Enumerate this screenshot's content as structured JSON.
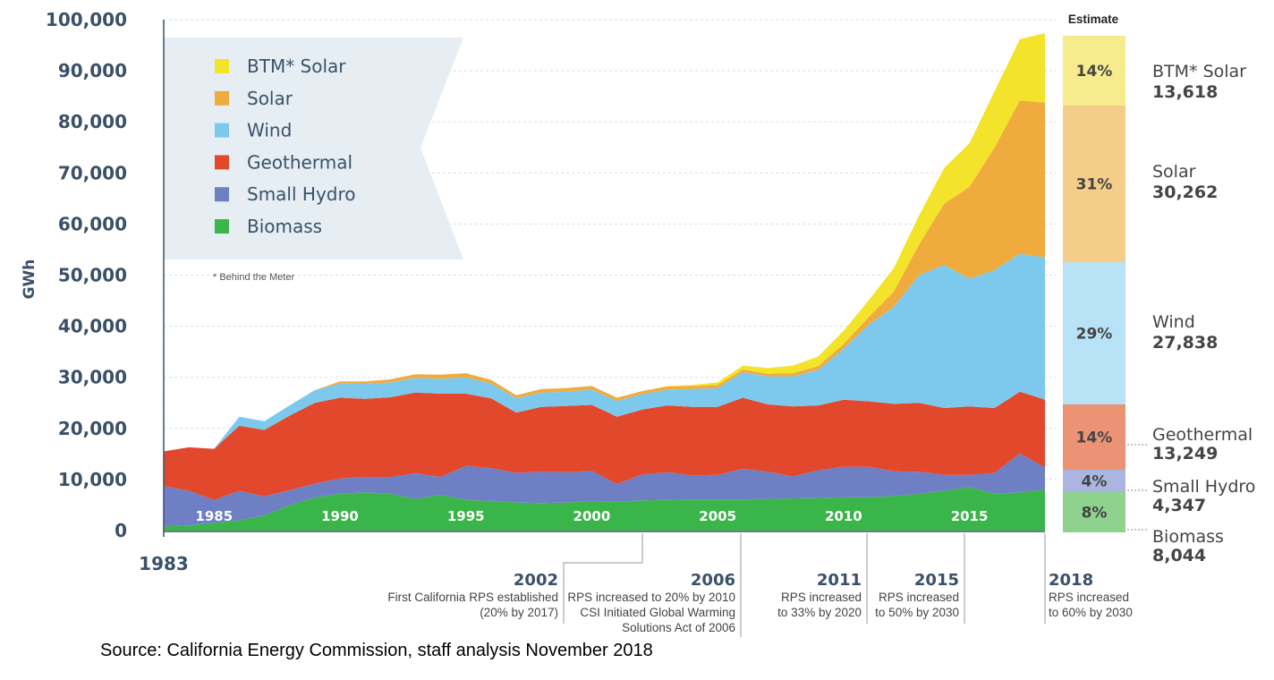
{
  "chart_data": {
    "type": "area",
    "stacked": true,
    "ylabel": "GWh",
    "ylim": [
      0,
      100000
    ],
    "yticks": [
      0,
      10000,
      20000,
      30000,
      40000,
      50000,
      60000,
      70000,
      80000,
      90000,
      100000
    ],
    "ytick_labels": [
      "0",
      "10,000",
      "20,000",
      "30,000",
      "40,000",
      "50,000",
      "60,000",
      "70,000",
      "80,000",
      "90,000",
      "100,000"
    ],
    "x_start_label": "1983",
    "xtick_labels": [
      "1985",
      "1990",
      "1995",
      "2000",
      "2005",
      "2010",
      "2015"
    ],
    "xtick_years": [
      1985,
      1990,
      1995,
      2000,
      2005,
      2010,
      2015
    ],
    "x": [
      1983,
      1984,
      1985,
      1986,
      1987,
      1988,
      1989,
      1990,
      1991,
      1992,
      1993,
      1994,
      1995,
      1996,
      1997,
      1998,
      1999,
      2000,
      2001,
      2002,
      2003,
      2004,
      2005,
      2006,
      2007,
      2008,
      2009,
      2010,
      2011,
      2012,
      2013,
      2014,
      2015,
      2016,
      2017,
      2018
    ],
    "series": [
      {
        "name": "Biomass",
        "color": "#3ab54a",
        "values": [
          800,
          1000,
          1500,
          2000,
          3000,
          5000,
          6500,
          7200,
          7500,
          7200,
          6200,
          7000,
          6000,
          5800,
          5500,
          5400,
          5500,
          5800,
          5600,
          5900,
          6000,
          6100,
          6100,
          6100,
          6200,
          6300,
          6400,
          6500,
          6500,
          6800,
          7200,
          7800,
          8500,
          7200,
          7500,
          8044
        ]
      },
      {
        "name": "Small Hydro",
        "color": "#6e7fc4",
        "values": [
          7900,
          6800,
          4500,
          5800,
          3700,
          2900,
          2700,
          3000,
          3000,
          3300,
          5000,
          3500,
          6700,
          6400,
          5800,
          6100,
          5900,
          5900,
          3500,
          5100,
          5400,
          4700,
          4800,
          6000,
          5300,
          4300,
          5400,
          6000,
          6000,
          4800,
          4300,
          3100,
          2400,
          4100,
          7600,
          4347
        ]
      },
      {
        "name": "Geothermal",
        "color": "#e2482c",
        "values": [
          6800,
          8500,
          10000,
          12700,
          13000,
          14600,
          15800,
          15800,
          15300,
          15600,
          15800,
          16300,
          14100,
          13700,
          11800,
          12700,
          13000,
          12900,
          13200,
          12700,
          13100,
          13400,
          13300,
          13900,
          13200,
          13700,
          12700,
          13100,
          12800,
          13200,
          13500,
          13100,
          13400,
          12700,
          12100,
          13249
        ]
      },
      {
        "name": "Wind",
        "color": "#7dc9ee",
        "values": [
          0,
          0,
          0,
          1800,
          1700,
          2000,
          2500,
          2800,
          2900,
          2900,
          2900,
          2900,
          3200,
          2900,
          2800,
          2800,
          2800,
          3000,
          3100,
          3000,
          3100,
          3500,
          3700,
          5000,
          5500,
          5900,
          7000,
          10000,
          15000,
          19000,
          25000,
          28000,
          25000,
          27000,
          27000,
          27838
        ]
      },
      {
        "name": "Solar",
        "color": "#f0ab3e",
        "values": [
          0,
          0,
          0,
          0,
          0,
          0,
          0,
          400,
          500,
          600,
          700,
          800,
          800,
          700,
          600,
          700,
          700,
          700,
          600,
          600,
          600,
          600,
          600,
          500,
          500,
          600,
          700,
          900,
          1500,
          3000,
          6000,
          12000,
          18000,
          24000,
          30000,
          30262
        ]
      },
      {
        "name": "BTM* Solar",
        "color": "#f3e32a",
        "values": [
          0,
          0,
          0,
          0,
          0,
          0,
          0,
          0,
          0,
          0,
          0,
          0,
          0,
          0,
          0,
          0,
          0,
          0,
          0,
          0,
          100,
          200,
          500,
          800,
          1100,
          1500,
          1900,
          2600,
          3300,
          4600,
          5700,
          7000,
          8500,
          11000,
          12000,
          13618
        ]
      }
    ],
    "legend": {
      "placement": "top-left",
      "entries": [
        "BTM* Solar",
        "Solar",
        "Wind",
        "Geothermal",
        "Small Hydro",
        "Biomass"
      ]
    },
    "footnote": "* Behind the Meter",
    "estimate": {
      "title": "Estimate",
      "items": [
        {
          "name": "BTM* Solar",
          "value": "13,618",
          "pct": "14%",
          "color": "#f6ec8e"
        },
        {
          "name": "Solar",
          "value": "30,262",
          "pct": "31%",
          "color": "#f5cd8a"
        },
        {
          "name": "Wind",
          "value": "27,838",
          "pct": "29%",
          "color": "#b8e2f6"
        },
        {
          "name": "Geothermal",
          "value": "13,249",
          "pct": "14%",
          "color": "#ec9275"
        },
        {
          "name": "Small Hydro",
          "value": "4,347",
          "pct": "4%",
          "color": "#aab6e0"
        },
        {
          "name": "Biomass",
          "value": "8,044",
          "pct": "8%",
          "color": "#8ed28e"
        }
      ]
    },
    "events": [
      {
        "year": "2002",
        "lines": [
          "First California RPS established",
          "(20% by 2017)"
        ]
      },
      {
        "year": "2006",
        "lines": [
          "RPS increased to 20% by 2010",
          "CSI Initiated Global Warming",
          "Solutions Act of 2006"
        ]
      },
      {
        "year": "2011",
        "lines": [
          "RPS increased",
          "to 33% by 2020"
        ]
      },
      {
        "year": "2015",
        "lines": [
          "RPS increased",
          "to 50% by 2030"
        ]
      },
      {
        "year": "2018",
        "lines": [
          "RPS increased",
          "to 60% by 2030"
        ]
      }
    ]
  },
  "source": "Source: California Energy Commission, staff analysis November 2018"
}
